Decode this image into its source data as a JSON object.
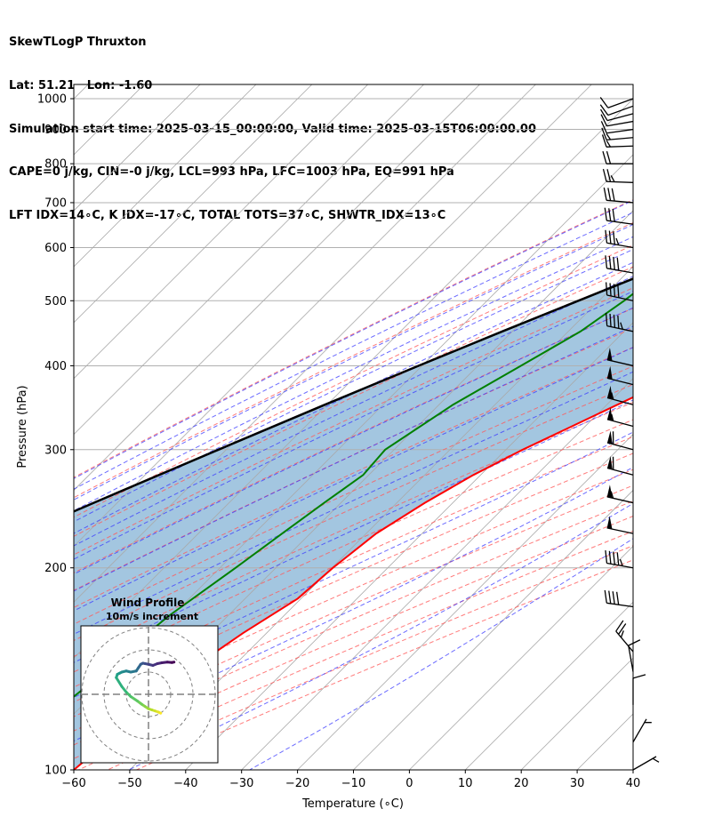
{
  "header": {
    "line1": "SkewTLogP Thruxton",
    "line2": "Lat: 51.21   Lon: -1.60",
    "line3": "Simulation start time: 2025-03-15_00:00:00, Valid time: 2025-03-15T06:00:00.00",
    "line4": "CAPE=0 j/kg, CIN=-0 j/kg, LCL=993 hPa, LFC=1003 hPa, EQ=991 hPa",
    "line5": "LFT IDX=14∘C, K IDX=-17∘C, TOTAL TOTS=37∘C, SHWTR_IDX=13∘C"
  },
  "chart_data": {
    "type": "line",
    "subtype": "skew-T log-P diagram",
    "xlabel": "Temperature (∘C)",
    "ylabel": "Pressure (hPa)",
    "xlim": [
      -60,
      40
    ],
    "ylim": [
      1050,
      100
    ],
    "y_scale": "log",
    "xticks": [
      -60,
      -50,
      -40,
      -30,
      -20,
      -10,
      0,
      10,
      20,
      30,
      40
    ],
    "xtick_labels": [
      "−60",
      "−50",
      "−40",
      "−30",
      "−20",
      "−10",
      "0",
      "10",
      "20",
      "30",
      "40"
    ],
    "yticks": [
      100,
      200,
      300,
      400,
      500,
      600,
      700,
      800,
      900,
      1000
    ],
    "ytick_labels": [
      "100",
      "200",
      "300",
      "400",
      "500",
      "600",
      "700",
      "800",
      "900",
      "1000"
    ],
    "grid": true,
    "colors": {
      "temperature": "#ff0000",
      "dewpoint": "#008000",
      "parcel": "#000000",
      "shade": "#a3c6e0",
      "dry_adiabat": "#ff5a5a",
      "moist_adiabat": "#3a3aff",
      "mixing_ratio": "#8a2be2",
      "isotherm": "#a9a9a9",
      "grid": "#b0b0b0"
    },
    "series": [
      {
        "role": "temperature",
        "points": [
          [
            1000,
            3.2
          ],
          [
            980,
            2.2
          ],
          [
            950,
            0.6
          ],
          [
            900,
            -0.9
          ],
          [
            850,
            -1.9
          ],
          [
            800,
            -1.6
          ],
          [
            750,
            -0.4
          ],
          [
            700,
            -0.5
          ],
          [
            650,
            -2.2
          ],
          [
            600,
            -4.3
          ],
          [
            550,
            -7.5
          ],
          [
            500,
            -10.3
          ],
          [
            450,
            -14.8
          ],
          [
            400,
            -20.3
          ],
          [
            350,
            -28.1
          ],
          [
            300,
            -37.0
          ],
          [
            275,
            -41.3
          ],
          [
            250,
            -45.0
          ],
          [
            225,
            -48.2
          ],
          [
            200,
            -49.8
          ],
          [
            180,
            -50.6
          ],
          [
            160,
            -54.2
          ],
          [
            140,
            -57.3
          ],
          [
            125,
            -58.5
          ],
          [
            110,
            -59.0
          ],
          [
            100,
            -60.0
          ]
        ]
      },
      {
        "role": "dewpoint",
        "points": [
          [
            1000,
            0.4
          ],
          [
            980,
            -0.5
          ],
          [
            950,
            -2.7
          ],
          [
            900,
            -5.3
          ],
          [
            850,
            -7.3
          ],
          [
            800,
            -10.0
          ],
          [
            775,
            -13.5
          ],
          [
            750,
            -19.0
          ],
          [
            700,
            -28.0
          ],
          [
            650,
            -36.3
          ],
          [
            600,
            -41.0
          ],
          [
            550,
            -44.0
          ],
          [
            500,
            -45.5
          ],
          [
            450,
            -47.8
          ],
          [
            400,
            -52.3
          ],
          [
            350,
            -57.5
          ],
          [
            300,
            -61.6
          ],
          [
            275,
            -61.0
          ],
          [
            250,
            -63.0
          ],
          [
            225,
            -65.0
          ],
          [
            200,
            -67.2
          ],
          [
            170,
            -70.5
          ],
          [
            150,
            -72.0
          ],
          [
            140,
            -72.0
          ],
          [
            120,
            -74.0
          ],
          [
            100,
            -75.5
          ]
        ]
      },
      {
        "role": "parcel",
        "points": [
          [
            1003,
            1.5
          ],
          [
            990,
            1.0
          ],
          [
            950,
            -2.1
          ],
          [
            900,
            -6.5
          ],
          [
            850,
            -11.0
          ],
          [
            800,
            -15.9
          ],
          [
            750,
            -21.2
          ],
          [
            700,
            -26.9
          ],
          [
            650,
            -33.0
          ],
          [
            600,
            -39.4
          ],
          [
            550,
            -46.3
          ],
          [
            500,
            -53.7
          ],
          [
            450,
            -61.8
          ],
          [
            400,
            -70.6
          ],
          [
            350,
            -80.4
          ],
          [
            300,
            -91.4
          ],
          [
            250,
            -104.2
          ],
          [
            200,
            -119.4
          ],
          [
            150,
            -138.3
          ],
          [
            100,
            -163.9
          ]
        ]
      }
    ],
    "wind_barbs": {
      "color": "#000000",
      "pressures": [
        1000,
        975,
        950,
        925,
        900,
        875,
        850,
        800,
        750,
        700,
        650,
        600,
        550,
        500,
        450,
        400,
        375,
        350,
        325,
        300,
        275,
        250,
        225,
        200,
        175,
        150,
        140,
        125,
        110,
        100
      ],
      "speed_kt": [
        10,
        8,
        8,
        10,
        12,
        14,
        15,
        20,
        25,
        28,
        30,
        34,
        38,
        42,
        45,
        50,
        52,
        55,
        57,
        60,
        60,
        56,
        52,
        46,
        40,
        26,
        12,
        10,
        6,
        5
      ],
      "direction_deg": [
        250,
        250,
        255,
        260,
        262,
        265,
        268,
        270,
        272,
        275,
        278,
        280,
        280,
        282,
        282,
        283,
        284,
        285,
        285,
        285,
        285,
        283,
        282,
        280,
        278,
        320,
        350,
        0,
        30,
        60
      ]
    },
    "hodograph": {
      "title": "Wind Profile",
      "subtitle": "10m/s increment",
      "colormap": "viridis",
      "ring_step_ms": 10,
      "rings": 3,
      "u_ms": [
        5.5,
        4.5,
        3.0,
        1.5,
        0.0,
        -1.5,
        -3.0,
        -5.0,
        -8.0,
        -10.0,
        -12.0,
        -14.5,
        -14.0,
        -13.0,
        -12.0,
        -10.0,
        -8.0,
        -5.5,
        -4.5,
        -3.5,
        -2.5,
        -1.5,
        0.0,
        2.0,
        4.0,
        6.0,
        8.5,
        10.5,
        11.5
      ],
      "v_ms": [
        -8.5,
        -8.0,
        -7.5,
        -7.0,
        -6.5,
        -5.5,
        -4.5,
        -3.0,
        -1.0,
        1.0,
        3.5,
        7.5,
        9.0,
        9.5,
        10.0,
        10.5,
        10.0,
        10.5,
        12.0,
        13.5,
        14.0,
        13.8,
        13.5,
        13.0,
        13.8,
        14.2,
        14.5,
        14.3,
        14.5
      ]
    }
  }
}
